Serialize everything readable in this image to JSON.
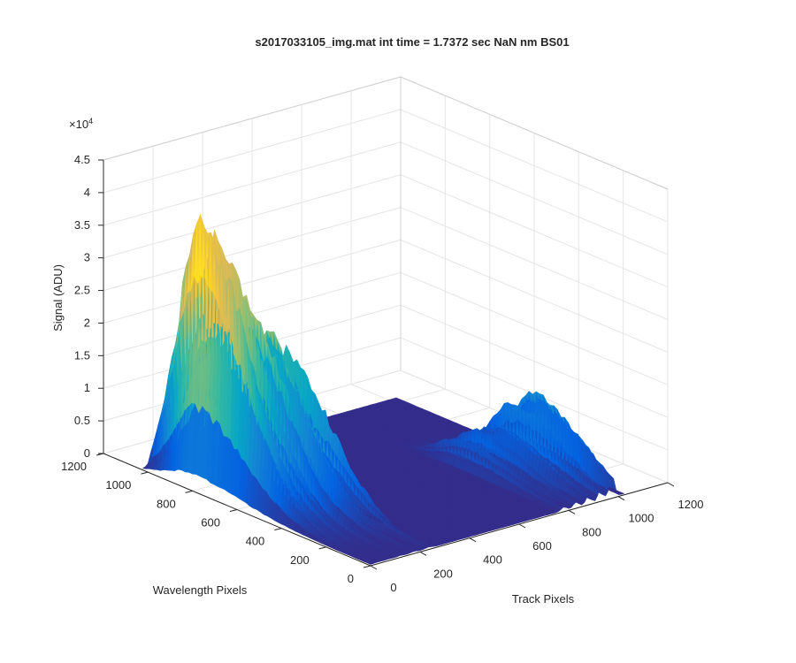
{
  "chart_data": {
    "type": "surface",
    "title": "s2017033105_img.mat int time = 1.7372 sec  NaN nm BS01",
    "xlabel": "Track Pixels",
    "ylabel": "Wavelength Pixels",
    "zlabel": "Signal (ADU)",
    "exponent_label": "×10",
    "exponent_power": "4",
    "x_ticks": [
      "0",
      "200",
      "400",
      "600",
      "800",
      "1000",
      "1200"
    ],
    "y_ticks": [
      "0",
      "200",
      "400",
      "600",
      "800",
      "1000",
      "1200"
    ],
    "z_ticks": [
      "0",
      "0.5",
      "1",
      "1.5",
      "2",
      "2.5",
      "3",
      "3.5",
      "4",
      "4.5"
    ],
    "xlim": [
      0,
      1200
    ],
    "ylim": [
      0,
      1200
    ],
    "zlim": [
      0,
      45000
    ],
    "colormap": "parula",
    "colormap_stops": [
      "#352a87",
      "#0363e1",
      "#1485d4",
      "#06a7c6",
      "#38b99e",
      "#92bf73",
      "#d9ba56",
      "#fcce2e",
      "#f9fb0e"
    ],
    "grid": true,
    "view": {
      "azimuth": -37.5,
      "elevation": 30
    },
    "surface": {
      "x_range": [
        0,
        1024
      ],
      "y_range": [
        0,
        1024
      ],
      "base_level": 200,
      "fiber_bands": [
        {
          "track_center": 30,
          "width": 18,
          "peak_wavelength": 800,
          "peak": 40000
        },
        {
          "track_center": 75,
          "width": 16,
          "peak_wavelength": 780,
          "peak": 37000
        },
        {
          "track_center": 120,
          "width": 16,
          "peak_wavelength": 740,
          "peak": 32000
        },
        {
          "track_center": 175,
          "width": 16,
          "peak_wavelength": 700,
          "peak": 27000
        },
        {
          "track_center": 235,
          "width": 16,
          "peak_wavelength": 660,
          "peak": 21000
        },
        {
          "track_center": 780,
          "width": 14,
          "peak_wavelength": 450,
          "peak": 4500
        },
        {
          "track_center": 830,
          "width": 14,
          "peak_wavelength": 430,
          "peak": 5500
        },
        {
          "track_center": 880,
          "width": 14,
          "peak_wavelength": 400,
          "peak": 7000
        },
        {
          "track_center": 930,
          "width": 14,
          "peak_wavelength": 380,
          "peak": 9500
        },
        {
          "track_center": 975,
          "width": 14,
          "peak_wavelength": 340,
          "peak": 12000
        }
      ]
    }
  }
}
